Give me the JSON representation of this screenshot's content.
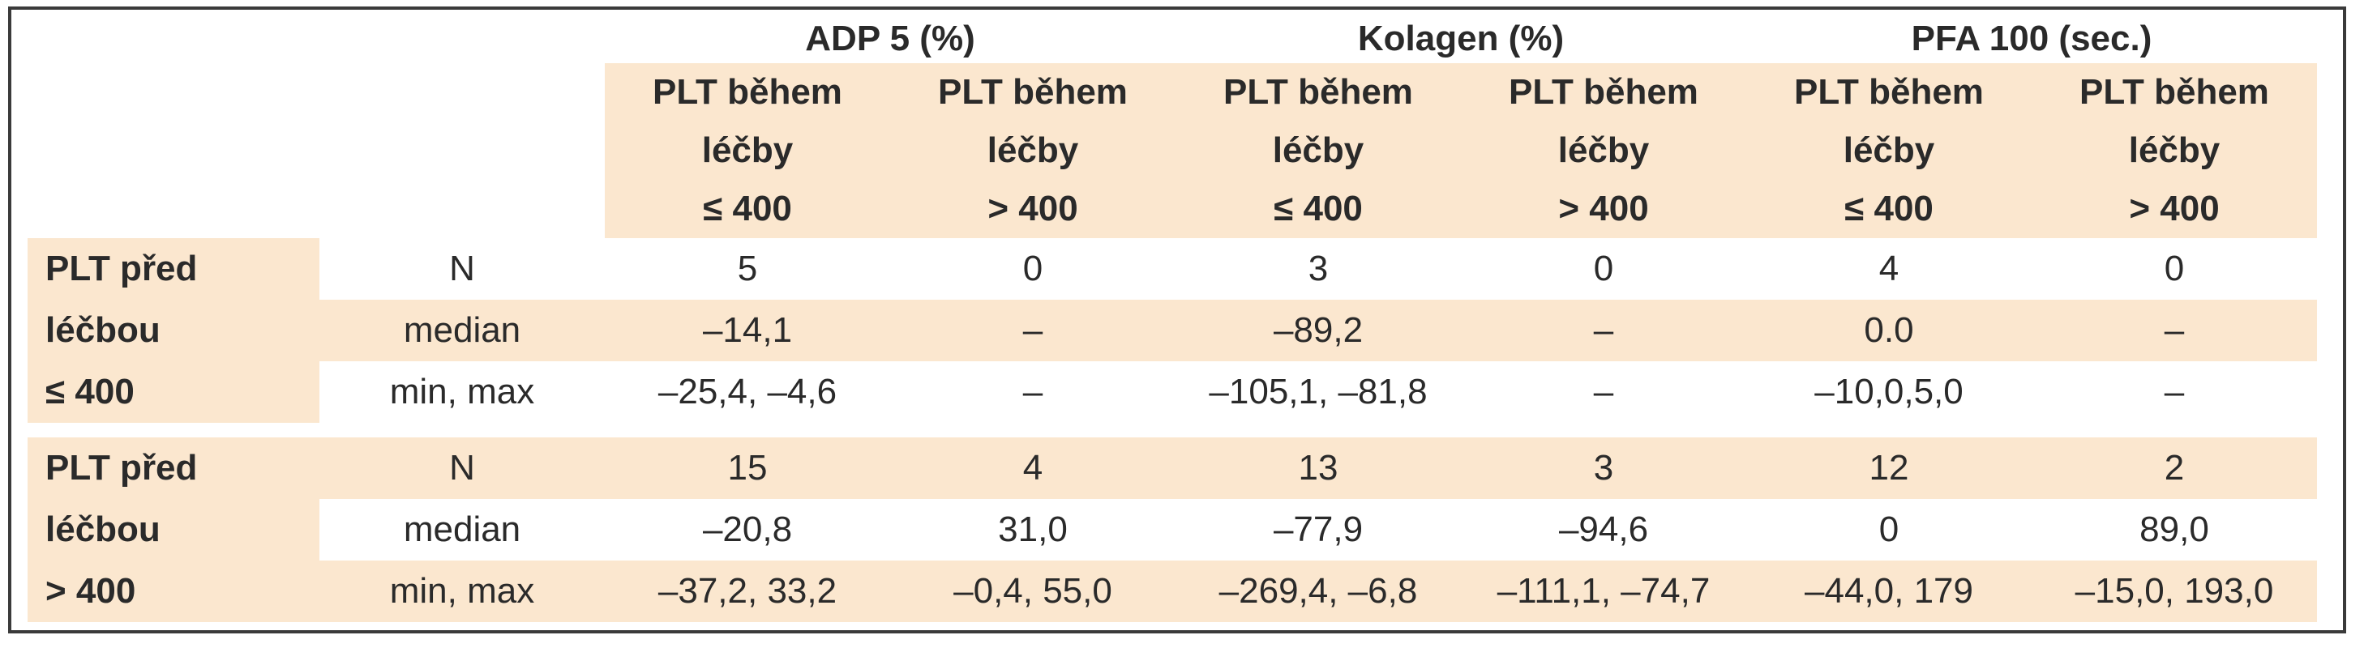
{
  "groups": [
    "ADP 5 (%)",
    "Kolagen (%)",
    "PFA 100 (sec.)"
  ],
  "subheaders": [
    [
      "PLT během",
      "léčby",
      "≤ 400"
    ],
    [
      "PLT během",
      "léčby",
      "> 400"
    ],
    [
      "PLT během",
      "léčby",
      "≤ 400"
    ],
    [
      "PLT během",
      "léčby",
      "> 400"
    ],
    [
      "PLT během",
      "léčby",
      "≤ 400"
    ],
    [
      "PLT během",
      "léčby",
      "> 400"
    ]
  ],
  "blocks": [
    {
      "label": [
        "PLT před",
        "léčbou",
        "≤ 400"
      ],
      "rows": [
        {
          "stat": "N",
          "values": [
            "5",
            "0",
            "3",
            "0",
            "4",
            "0"
          ]
        },
        {
          "stat": "median",
          "values": [
            "–14,1",
            "–",
            "–89,2",
            "–",
            "0.0",
            "–"
          ]
        },
        {
          "stat": "min, max",
          "values": [
            "–25,4, –4,6",
            "–",
            "–105,1, –81,8",
            "–",
            "–10,0,5,0",
            "–"
          ]
        }
      ]
    },
    {
      "label": [
        "PLT před",
        "léčbou",
        "> 400"
      ],
      "rows": [
        {
          "stat": "N",
          "values": [
            "15",
            "4",
            "13",
            "3",
            "12",
            "2"
          ]
        },
        {
          "stat": "median",
          "values": [
            "–20,8",
            "31,0",
            "–77,9",
            "–94,6",
            "0",
            "89,0"
          ]
        },
        {
          "stat": "min, max",
          "values": [
            "–37,2, 33,2",
            "–0,4, 55,0",
            "–269,4, –6,8",
            "–111,1, –74,7",
            "–44,0, 179",
            "–15,0, 193,0"
          ]
        }
      ]
    }
  ]
}
